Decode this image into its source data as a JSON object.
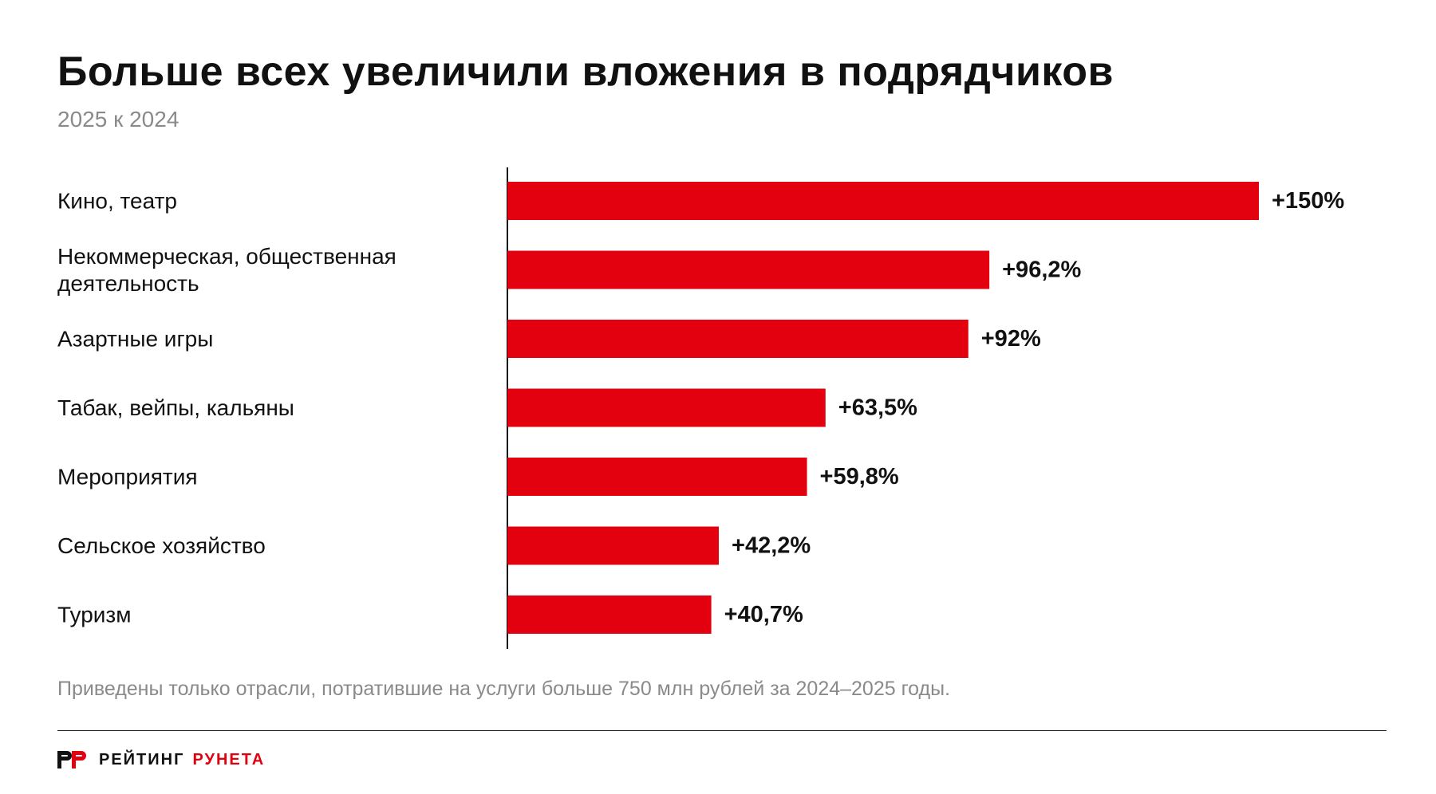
{
  "title": "Больше всех увеличили вложения в подрядчиков",
  "subtitle": "2025 к 2024",
  "note": "Приведены только отрасли, потратившие на услуги больше 750 млн рублей за 2024–2025 годы.",
  "brand": {
    "word1": "РЕЙТИНГ",
    "word2": "РУНЕТА",
    "logo_icon": "rr-logo-icon"
  },
  "colors": {
    "bar": "#e3000f",
    "text": "#111111",
    "muted": "#8a8a8a",
    "brand_accent": "#e3000f"
  },
  "chart_data": {
    "type": "bar",
    "orientation": "horizontal",
    "categories": [
      [
        "Кино, театр"
      ],
      [
        "Некоммерческая, общественная",
        "деятельность"
      ],
      [
        "Азартные игры"
      ],
      [
        "Табак, вейпы, кальяны"
      ],
      [
        "Мероприятия"
      ],
      [
        "Сельское хозяйство"
      ],
      [
        "Туризм"
      ]
    ],
    "values": [
      150,
      96.2,
      92,
      63.5,
      59.8,
      42.2,
      40.7
    ],
    "value_labels": [
      "+150%",
      "+96,2%",
      "+92%",
      "+63,5%",
      "+59,8%",
      "+42,2%",
      "+40,7%"
    ],
    "title": "Больше всех увеличили вложения в подрядчиков",
    "subtitle": "2025 к 2024",
    "xlabel": "",
    "ylabel": "",
    "xlim": [
      0,
      150
    ],
    "grid": false,
    "legend": "none"
  }
}
